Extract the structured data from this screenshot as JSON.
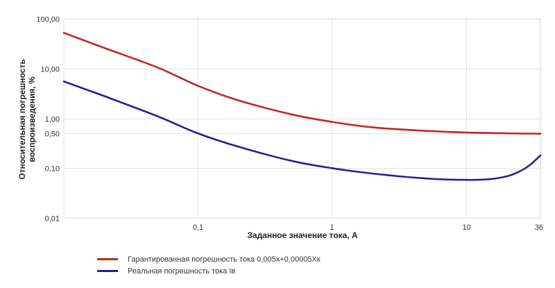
{
  "chart_data": {
    "type": "line",
    "title": "",
    "xlabel": "Заданное значение тока, А",
    "ylabel": "Относительная погрешность воспроизведения, %",
    "x_scale": "log",
    "y_scale": "log",
    "xlim": [
      0.01,
      36
    ],
    "ylim": [
      0.01,
      100
    ],
    "x_ticks": [
      {
        "value": 0.1,
        "label": "0,1"
      },
      {
        "value": 1,
        "label": "1"
      },
      {
        "value": 10,
        "label": "10"
      },
      {
        "value": 36,
        "label": "36"
      }
    ],
    "y_ticks": [
      {
        "value": 100,
        "label": "100,00"
      },
      {
        "value": 10,
        "label": "10,00"
      },
      {
        "value": 1,
        "label": "1,00"
      },
      {
        "value": 0.5,
        "label": "0,50"
      },
      {
        "value": 0.1,
        "label": "0,10"
      },
      {
        "value": 0.01,
        "label": "0,01"
      }
    ],
    "grid": true,
    "legend_position": "bottom-left",
    "series": [
      {
        "name": "Гарантированная погрешность тока 0,005х+0,00005Хк",
        "color": "#c0281e",
        "x": [
          0.01,
          0.02,
          0.05,
          0.1,
          0.2,
          0.5,
          1,
          2,
          5,
          10,
          20,
          36
        ],
        "y": [
          52,
          26,
          10.5,
          4.5,
          2.3,
          1.2,
          0.85,
          0.66,
          0.56,
          0.52,
          0.5,
          0.49
        ]
      },
      {
        "name": "Реальная погрешность тока Iв",
        "color": "#2a1f8f",
        "x": [
          0.01,
          0.02,
          0.05,
          0.1,
          0.2,
          0.5,
          1,
          2,
          5,
          10,
          15,
          20,
          25,
          30,
          36
        ],
        "y": [
          5.5,
          2.8,
          1.1,
          0.5,
          0.27,
          0.14,
          0.1,
          0.078,
          0.062,
          0.058,
          0.06,
          0.068,
          0.085,
          0.115,
          0.18
        ]
      }
    ]
  }
}
